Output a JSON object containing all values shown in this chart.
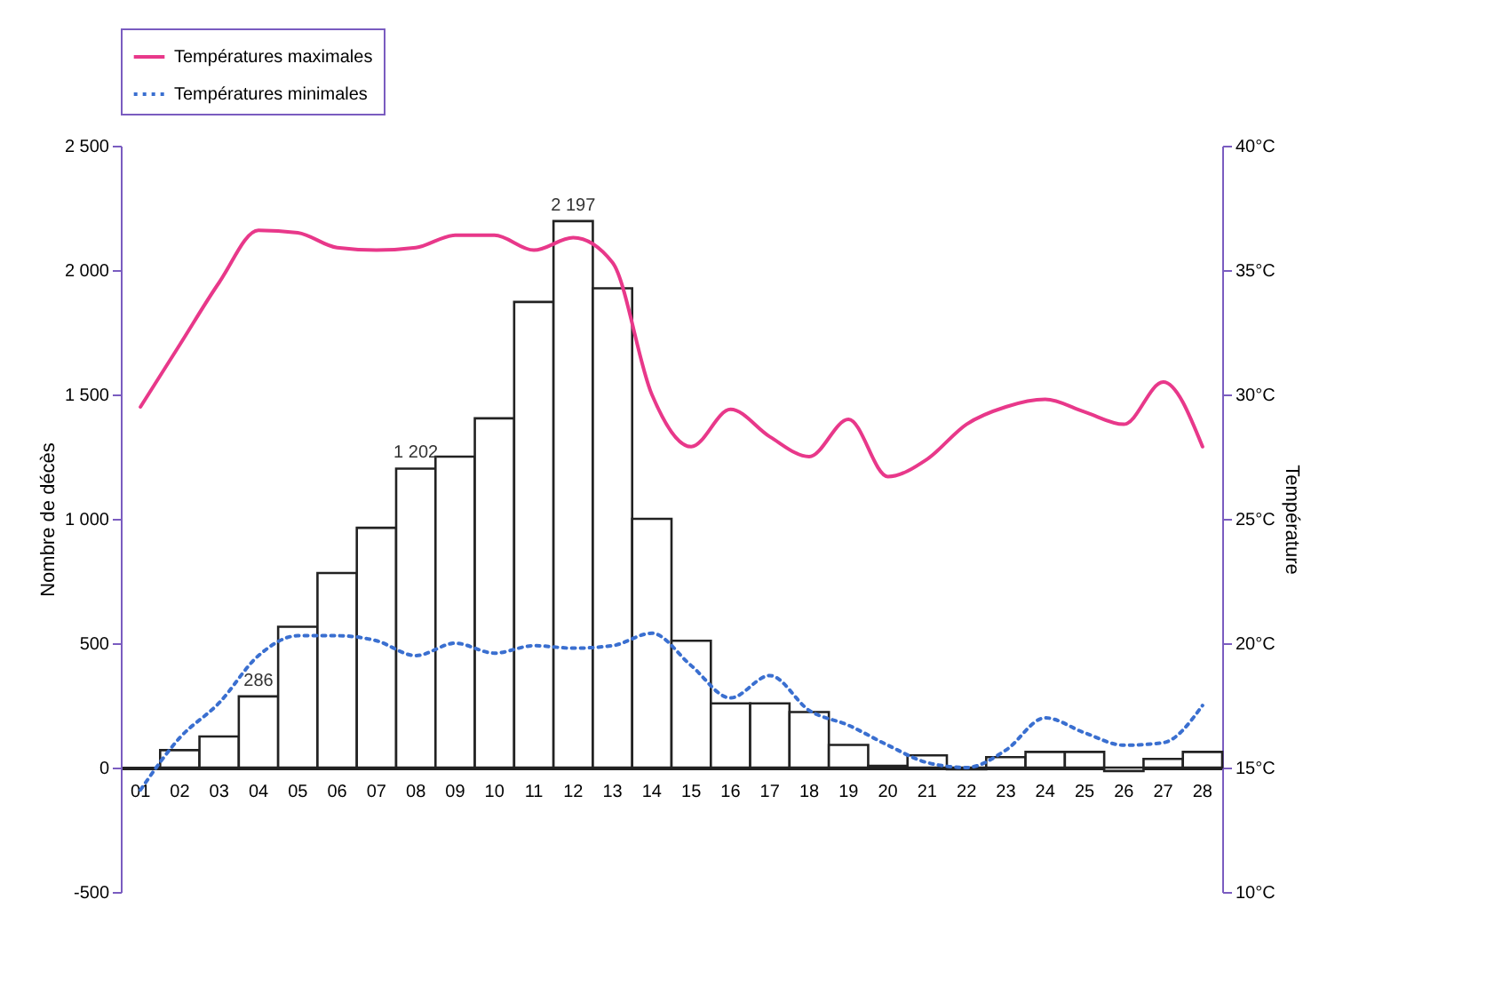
{
  "chart_data": {
    "type": "bar",
    "xlabel": null,
    "ylabel": "Nombre de décès",
    "y2label": "Température",
    "categories": [
      "01",
      "02",
      "03",
      "04",
      "05",
      "06",
      "07",
      "08",
      "09",
      "10",
      "11",
      "12",
      "13",
      "14",
      "15",
      "16",
      "17",
      "18",
      "19",
      "20",
      "21",
      "22",
      "23",
      "24",
      "25",
      "26",
      "27",
      "28"
    ],
    "series": [
      {
        "color": "#ffffff",
        "values": [
          null,
          70,
          125,
          286,
          566,
          782,
          964,
          1202,
          1250,
          1404,
          1872,
          2197,
          1927,
          1000,
          510,
          258,
          258,
          223,
          91,
          7,
          49,
          -7,
          42,
          63,
          63,
          -14,
          35,
          63
        ],
        "value_labels": [
          null,
          null,
          null,
          "286",
          null,
          null,
          null,
          "1 202",
          null,
          null,
          null,
          "2 197",
          null,
          null,
          null,
          null,
          null,
          null,
          null,
          null,
          null,
          null,
          null,
          null,
          null,
          null,
          null,
          null
        ]
      },
      {
        "type": "line",
        "name": "Températures maximales",
        "color": "#e8388a",
        "axis": "y2",
        "line_style": "solid",
        "values": [
          29.5,
          32,
          34.5,
          36.6,
          36.5,
          35.9,
          35.8,
          35.9,
          36.4,
          36.4,
          35.8,
          36.3,
          35.3,
          30,
          27.9,
          29.4,
          28.3,
          27.5,
          29,
          26.7,
          27.4,
          28.8,
          29.5,
          29.8,
          29.3,
          28.8,
          30.5,
          27.9
        ]
      },
      {
        "type": "line",
        "name": "Températures minimales",
        "color": "#3a6fd0",
        "axis": "y2",
        "line_style": "dotted",
        "values": [
          14.1,
          16.2,
          17.6,
          19.5,
          20.3,
          20.3,
          20.1,
          19.5,
          20,
          19.6,
          19.9,
          19.8,
          19.9,
          20.4,
          19.1,
          17.8,
          18.7,
          17.3,
          16.7,
          15.9,
          15.2,
          15,
          15.7,
          17,
          16.4,
          15.9,
          16,
          17.5
        ]
      }
    ],
    "ylim": [
      -500,
      2500
    ],
    "yticks": [
      {
        "value": -500,
        "label": "-500"
      },
      0,
      {
        "value": 500,
        "label": "500"
      },
      {
        "value": 1000,
        "label": "1 000"
      },
      {
        "value": 1500,
        "label": "1 500"
      },
      {
        "value": 2000,
        "label": "2 000"
      },
      {
        "value": 2500,
        "label": "2 500"
      }
    ],
    "y2lim": [
      10,
      40
    ],
    "y2ticks": [
      {
        "value": 10,
        "label": "10°C"
      },
      {
        "value": 15,
        "label": "15°C"
      },
      {
        "value": 20,
        "label": "20°C"
      },
      {
        "value": 25,
        "label": "25°C"
      },
      {
        "value": 30,
        "label": "30°C"
      },
      {
        "value": 35,
        "label": "35°C"
      },
      {
        "value": 40,
        "label": "40°C"
      }
    ],
    "legend": "top left",
    "grid": false
  }
}
